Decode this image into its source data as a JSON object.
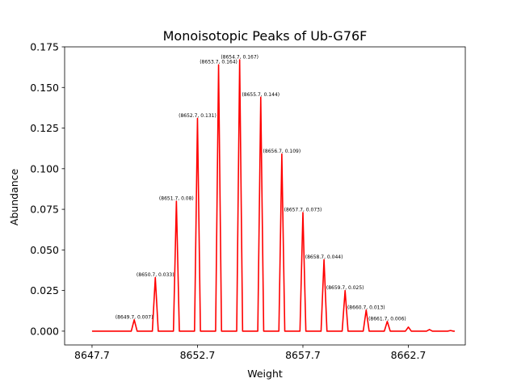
{
  "chart_data": {
    "type": "line",
    "title": "Monoisotopic Peaks of Ub-G76F",
    "xlabel": "Weight",
    "ylabel": "Abundance",
    "xlim": [
      8646.4,
      8665.4
    ],
    "ylim": [
      -0.0085,
      0.175
    ],
    "xticks": [
      8647.7,
      8652.7,
      8657.7,
      8662.7
    ],
    "xtick_labels": [
      "8647.7",
      "8652.7",
      "8657.7",
      "8662.7"
    ],
    "yticks": [
      0.0,
      0.025,
      0.05,
      0.075,
      0.1,
      0.125,
      0.15,
      0.175
    ],
    "ytick_labels": [
      "0.000",
      "0.025",
      "0.050",
      "0.075",
      "0.100",
      "0.125",
      "0.150",
      "0.175"
    ],
    "grid": false,
    "series": [
      {
        "color": "#ff0000",
        "line_start_x": 8647.7,
        "line_end_x": 8664.9,
        "peaks": [
          {
            "x": 8649.7,
            "y": 0.007,
            "label": "(8649.7, 0.007)"
          },
          {
            "x": 8650.7,
            "y": 0.033,
            "label": "(8650.7, 0.033)"
          },
          {
            "x": 8651.7,
            "y": 0.08,
            "label": "(8651.7, 0.08)"
          },
          {
            "x": 8652.7,
            "y": 0.131,
            "label": "(8652.7, 0.131)"
          },
          {
            "x": 8653.7,
            "y": 0.164,
            "label": "(8653.7, 0.164)"
          },
          {
            "x": 8654.7,
            "y": 0.167,
            "label": "(8654.7, 0.167)"
          },
          {
            "x": 8655.7,
            "y": 0.144,
            "label": "(8655.7, 0.144)"
          },
          {
            "x": 8656.7,
            "y": 0.109,
            "label": "(8656.7, 0.109)"
          },
          {
            "x": 8657.7,
            "y": 0.073,
            "label": "(8657.7, 0.073)"
          },
          {
            "x": 8658.7,
            "y": 0.044,
            "label": "(8658.7, 0.044)"
          },
          {
            "x": 8659.7,
            "y": 0.025,
            "label": "(8659.7, 0.025)"
          },
          {
            "x": 8660.7,
            "y": 0.013,
            "label": "(8660.7, 0.013)"
          },
          {
            "x": 8661.7,
            "y": 0.006,
            "label": "(8661.7, 0.006)"
          },
          {
            "x": 8662.7,
            "y": 0.0025,
            "label": ""
          },
          {
            "x": 8663.7,
            "y": 0.001,
            "label": ""
          },
          {
            "x": 8664.7,
            "y": 0.0004,
            "label": ""
          }
        ]
      }
    ]
  }
}
